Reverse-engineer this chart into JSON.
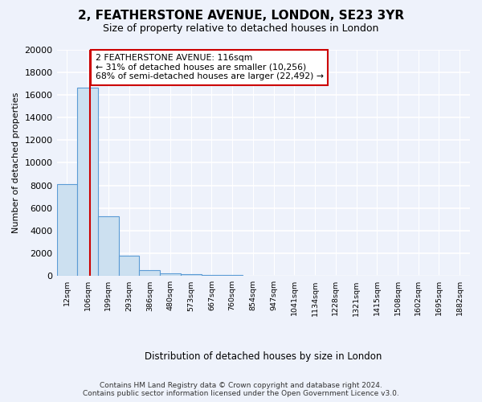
{
  "title": "2, FEATHERSTONE AVENUE, LONDON, SE23 3YR",
  "subtitle": "Size of property relative to detached houses in London",
  "xlabel": "Distribution of detached houses by size in London",
  "ylabel": "Number of detached properties",
  "bar_values": [
    8100,
    16600,
    5300,
    1800,
    500,
    270,
    160,
    120,
    90,
    0,
    0,
    0,
    0,
    0,
    0,
    0,
    0,
    0,
    0,
    0
  ],
  "bar_labels": [
    "12sqm",
    "106sqm",
    "199sqm",
    "293sqm",
    "386sqm",
    "480sqm",
    "573sqm",
    "667sqm",
    "760sqm",
    "854sqm",
    "947sqm",
    "1041sqm",
    "1134sqm",
    "1228sqm",
    "1321sqm",
    "1415sqm",
    "1508sqm",
    "1602sqm",
    "1695sqm",
    "1882sqm"
  ],
  "bar_color": "#cce0f0",
  "bar_edge_color": "#5b9bd5",
  "property_line_x": 1.13,
  "property_line_color": "#cc0000",
  "annotation_title": "2 FEATHERSTONE AVENUE: 116sqm",
  "annotation_line1": "← 31% of detached houses are smaller (10,256)",
  "annotation_line2": "68% of semi-detached houses are larger (22,492) →",
  "annotation_box_color": "#ffffff",
  "annotation_box_edge": "#cc0000",
  "ylim": [
    0,
    20000
  ],
  "yticks": [
    0,
    2000,
    4000,
    6000,
    8000,
    10000,
    12000,
    14000,
    16000,
    18000,
    20000
  ],
  "footer_line1": "Contains HM Land Registry data © Crown copyright and database right 2024.",
  "footer_line2": "Contains public sector information licensed under the Open Government Licence v3.0.",
  "background_color": "#eef2fb",
  "grid_color": "#ffffff"
}
